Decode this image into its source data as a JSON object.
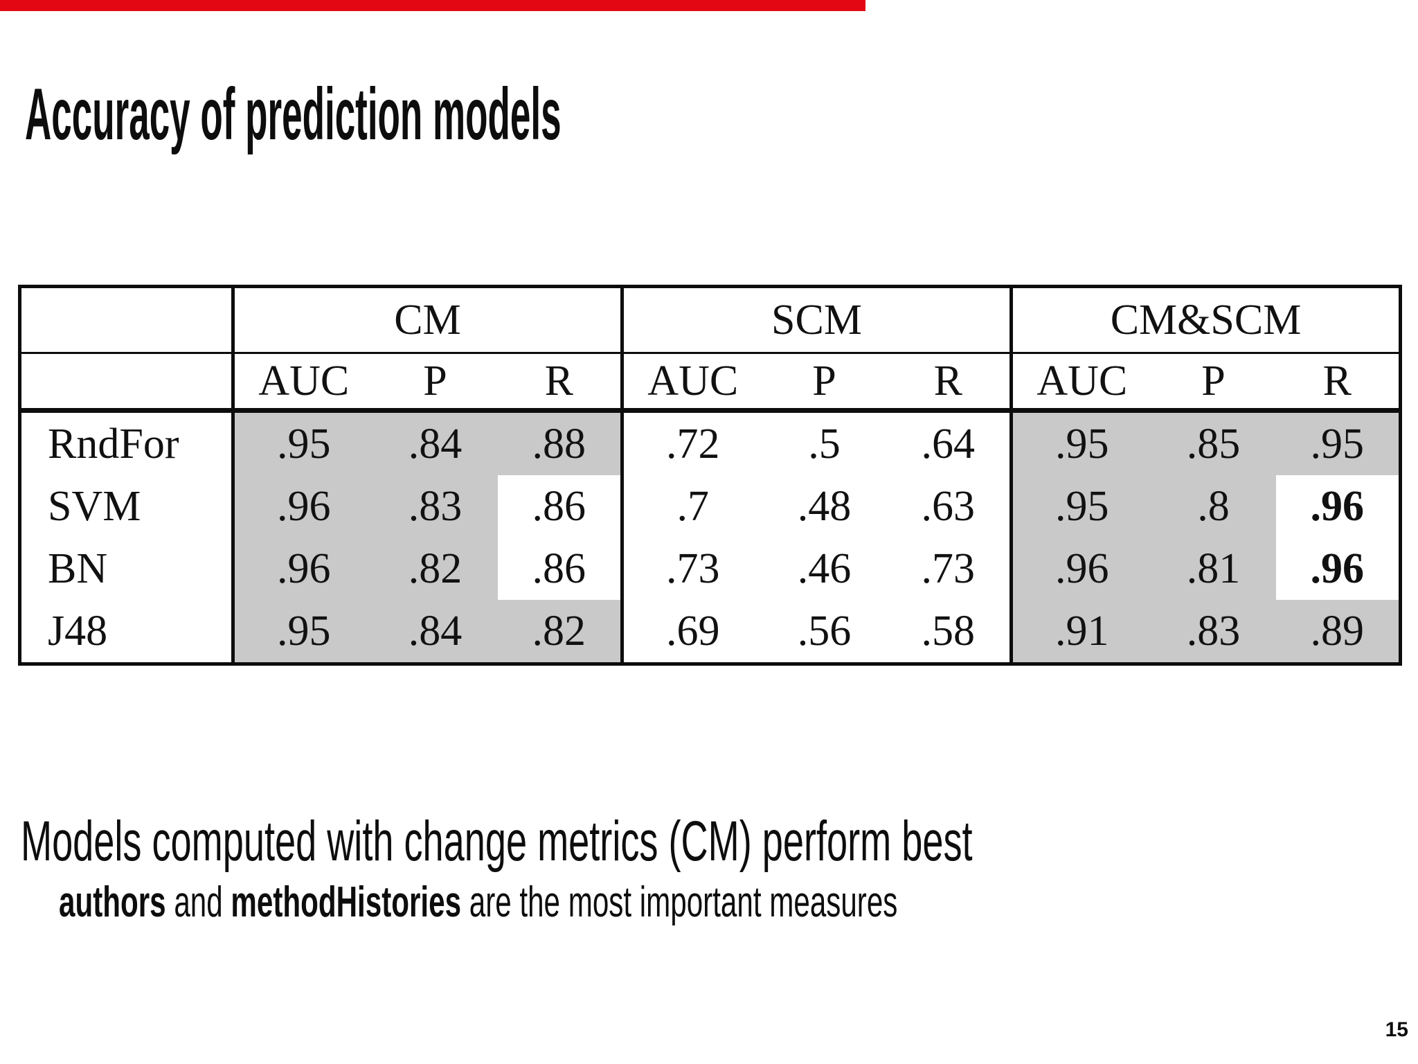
{
  "slide": {
    "title": "Accuracy of prediction models",
    "page_number": "15",
    "progress_color": "#e30613",
    "conclusion_line1": "Models computed with change metrics (CM) perform best",
    "conclusion_line2": {
      "bold1": "authors",
      "mid": " and ",
      "bold2": "methodHistories",
      "rest": " are the most important measures"
    }
  },
  "table": {
    "highlight_color": "#c9c9c9",
    "highlighted_sections": [
      "CM",
      "CM&SCM"
    ],
    "group_headers": [
      "CM",
      "SCM",
      "CM&SCM"
    ],
    "sub_headers": [
      "AUC",
      "P",
      "R"
    ],
    "rows": [
      {
        "label": "RndFor",
        "cm": [
          ".95",
          ".84",
          ".88"
        ],
        "scm": [
          ".72",
          ".5",
          ".64"
        ],
        "cmscm": [
          ".95",
          ".85",
          ".95"
        ]
      },
      {
        "label": "SVM",
        "cm": [
          ".96",
          ".83",
          ".86"
        ],
        "scm": [
          ".7",
          ".48",
          ".63"
        ],
        "cmscm": [
          ".95",
          ".8",
          ".96"
        ]
      },
      {
        "label": "BN",
        "cm": [
          ".96",
          ".82",
          ".86"
        ],
        "scm": [
          ".73",
          ".46",
          ".73"
        ],
        "cmscm": [
          ".96",
          ".81",
          ".96"
        ]
      },
      {
        "label": "J48",
        "cm": [
          ".95",
          ".84",
          ".82"
        ],
        "scm": [
          ".69",
          ".56",
          ".58"
        ],
        "cmscm": [
          ".91",
          ".83",
          ".89"
        ]
      }
    ],
    "bold_cells_note": "R column of CM&SCM for SVM and BN (.96, .96) shown bold on white"
  }
}
